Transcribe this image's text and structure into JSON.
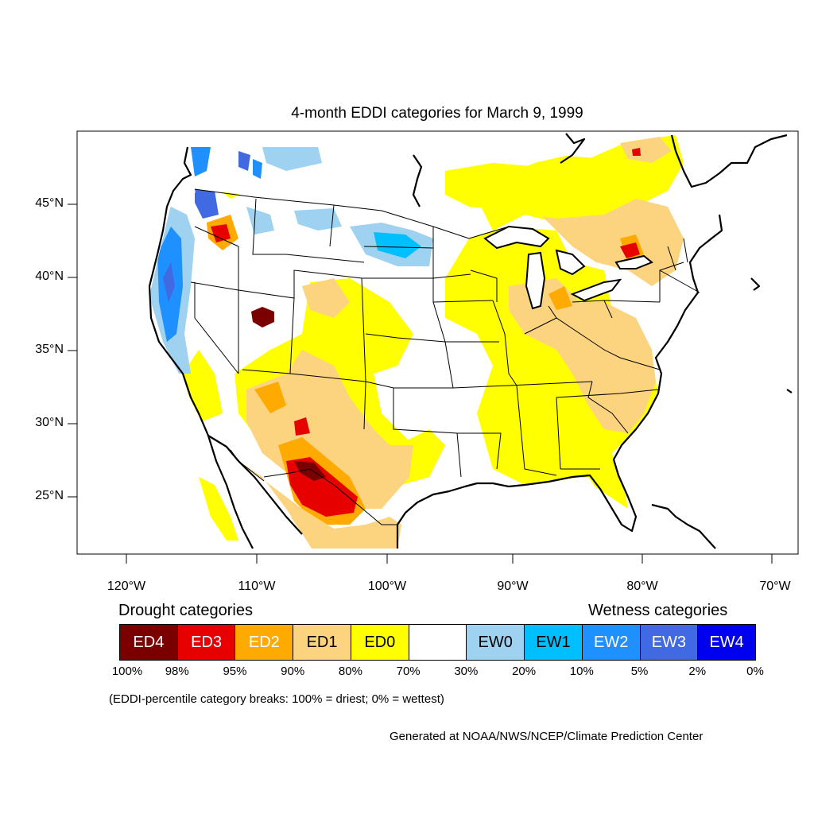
{
  "title": "4-month EDDI categories for March 9, 1999",
  "lat_labels": [
    "45°N",
    "40°N",
    "35°N",
    "30°N",
    "25°N"
  ],
  "lon_labels": [
    "120°W",
    "110°W",
    "100°W",
    "90°W",
    "80°W",
    "70°W"
  ],
  "drought_heading": "Drought categories",
  "wetness_heading": "Wetness categories",
  "legend": [
    {
      "label": "ED4",
      "color": "#7a0000",
      "text_color": "#ffffff"
    },
    {
      "label": "ED3",
      "color": "#e60000",
      "text_color": "#ffffff"
    },
    {
      "label": "ED2",
      "color": "#ffaa00",
      "text_color": "#ffffff"
    },
    {
      "label": "ED1",
      "color": "#fcd37f",
      "text_color": "#000000"
    },
    {
      "label": "ED0",
      "color": "#ffff00",
      "text_color": "#000000"
    },
    {
      "label": "",
      "color": "#ffffff",
      "text_color": "#000000"
    },
    {
      "label": "EW0",
      "color": "#9fd1f0",
      "text_color": "#000000"
    },
    {
      "label": "EW1",
      "color": "#00bfff",
      "text_color": "#000000"
    },
    {
      "label": "EW2",
      "color": "#1e90ff",
      "text_color": "#ffffff"
    },
    {
      "label": "EW3",
      "color": "#4169e1",
      "text_color": "#ffffff"
    },
    {
      "label": "EW4",
      "color": "#0000f0",
      "text_color": "#ffffff"
    }
  ],
  "percentiles": [
    "100%",
    "98%",
    "95%",
    "90%",
    "80%",
    "70%",
    "30%",
    "20%",
    "10%",
    "5%",
    "2%",
    "0%"
  ],
  "note": "(EDDI-percentile category breaks: 100% = driest; 0% = wettest)",
  "credit": "Generated at NOAA/NWS/NCEP/Climate Prediction Center"
}
